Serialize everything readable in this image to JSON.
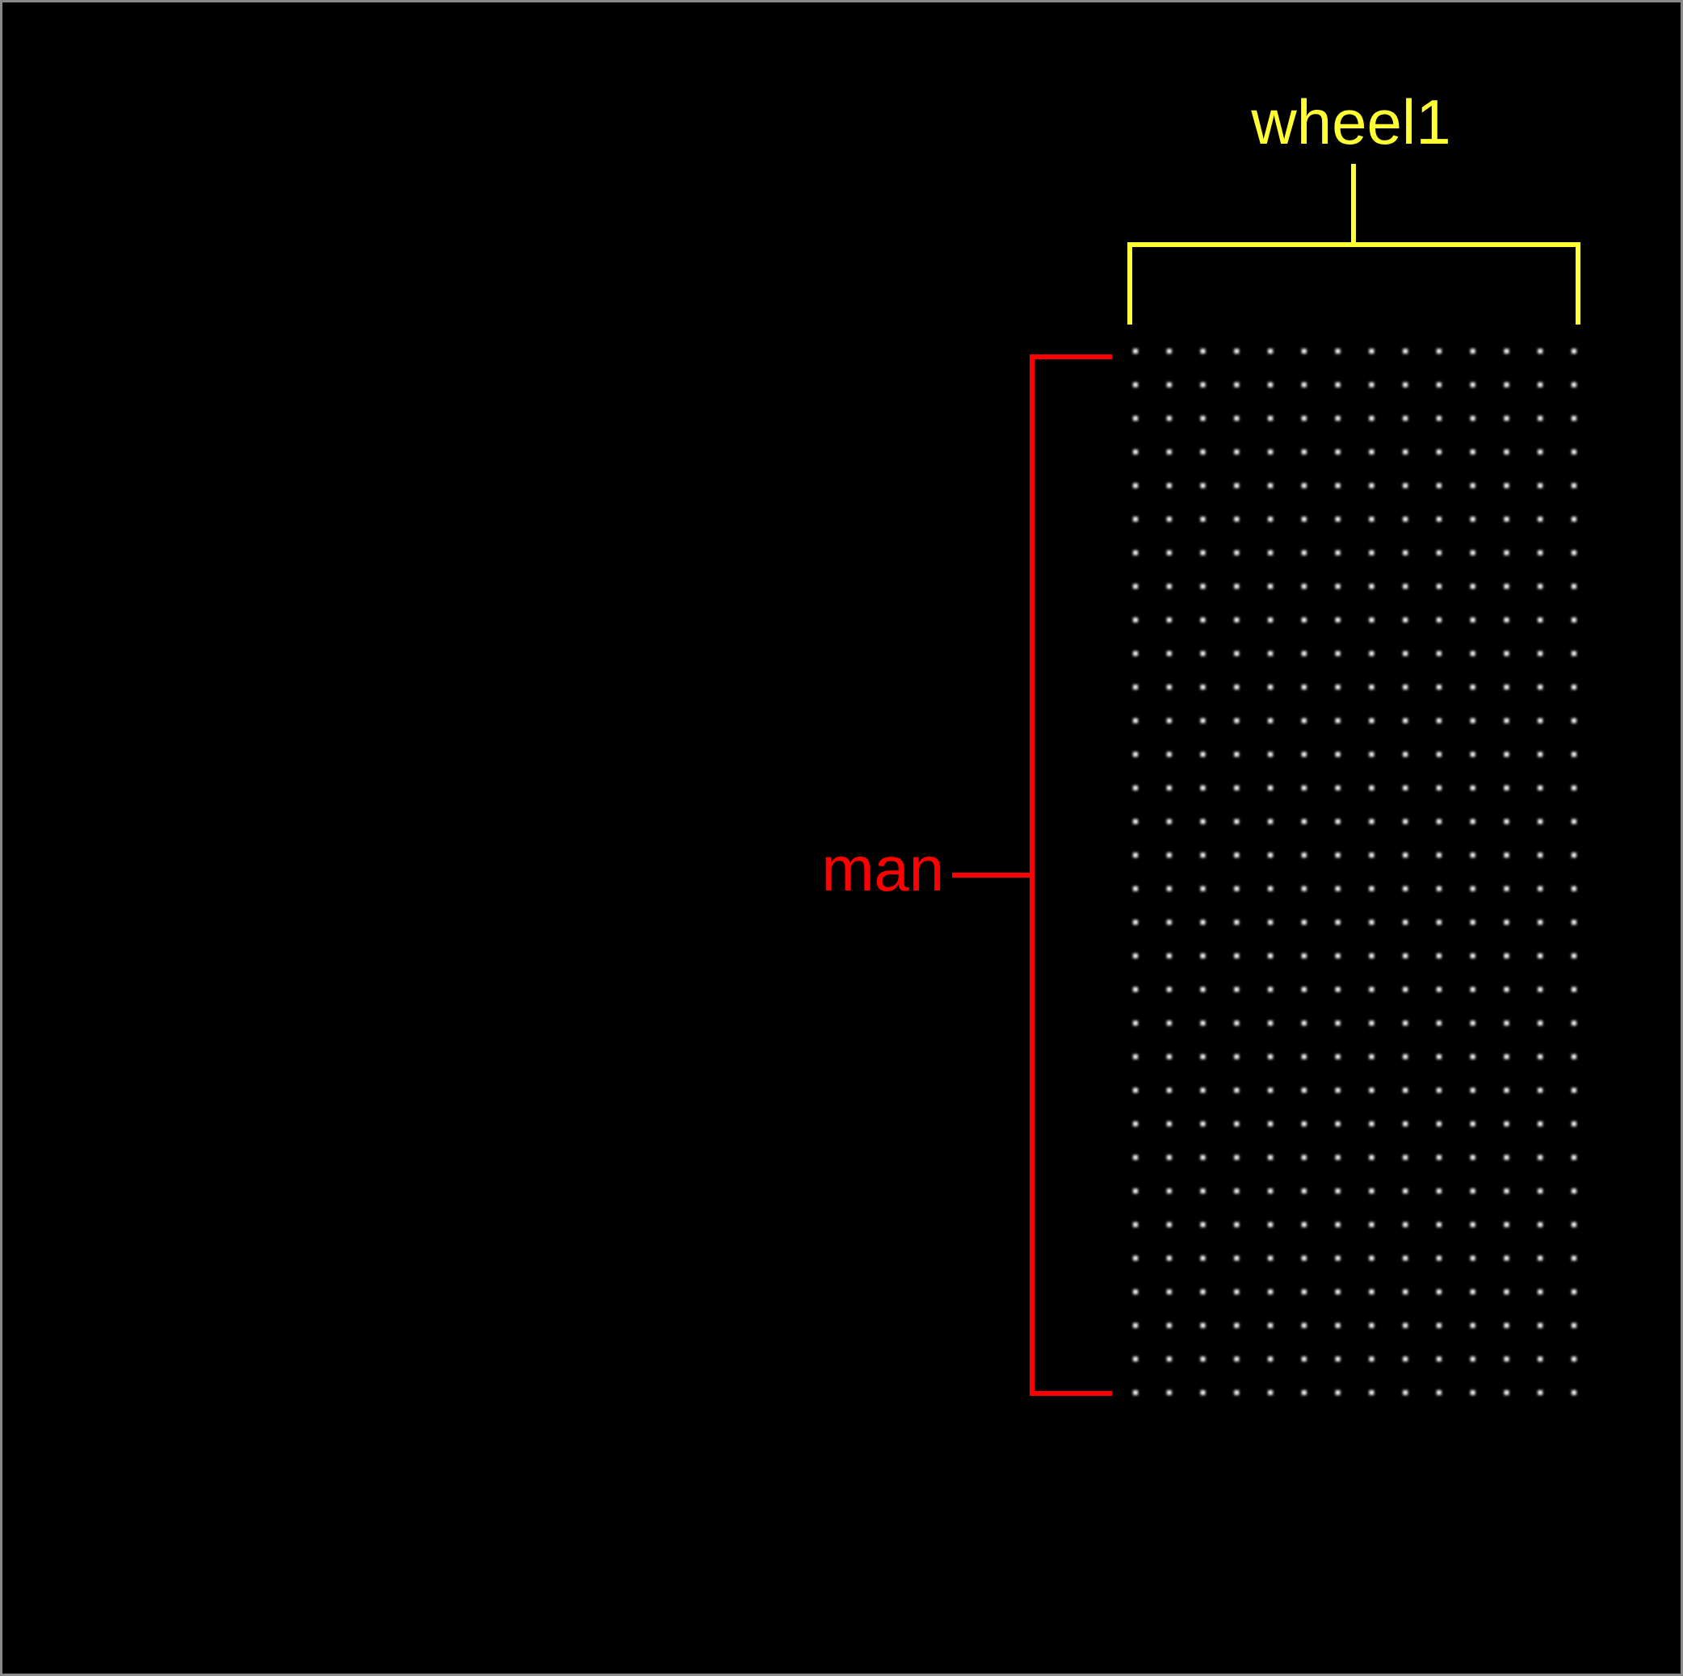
{
  "labels": {
    "top_bracket": "wheel1",
    "side_bracket": "man"
  },
  "colors": {
    "background": "#000000",
    "border": "#8a8a8a",
    "top_bracket": "#ffff33",
    "side_bracket": "#ff0000",
    "dots": "#ffffff"
  },
  "dot_grid": {
    "columns": 14,
    "rows": 32
  }
}
